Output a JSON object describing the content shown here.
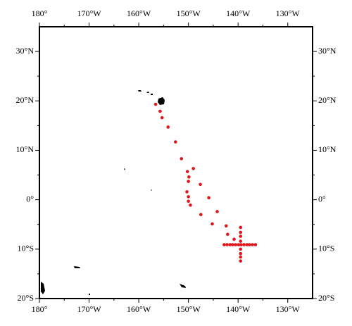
{
  "chart_data": {
    "type": "scatter",
    "x": [
      -156.6,
      -155.7,
      -155.3,
      -154.1,
      -152.6,
      -151.4,
      -150.2,
      -149.0,
      -149.9,
      -150.0,
      -147.6,
      -150.3,
      -150.0,
      -145.9,
      -150.0,
      -149.6,
      -147.5,
      -144.2,
      -145.2,
      -142.4,
      -139.5,
      -139.5,
      -142.1,
      -140.8,
      -139.5,
      -139.5,
      -142.8,
      -142.2,
      -141.6,
      -141.1,
      -140.5,
      -139.9,
      -139.4,
      -138.8,
      -138.2,
      -137.7,
      -137.1,
      -136.5,
      -139.5,
      -139.5,
      -139.5,
      -139.5
    ],
    "y": [
      19.3,
      17.9,
      16.6,
      14.7,
      11.7,
      8.3,
      5.7,
      6.3,
      4.6,
      3.7,
      3.1,
      1.6,
      0.6,
      0.4,
      -0.3,
      -1.1,
      -3.0,
      -2.4,
      -4.9,
      -5.3,
      -5.6,
      -6.6,
      -7.0,
      -8.0,
      -7.4,
      -8.4,
      -9.1,
      -9.1,
      -9.1,
      -9.1,
      -9.1,
      -9.1,
      -9.1,
      -9.1,
      -9.1,
      -9.1,
      -9.1,
      -9.1,
      -10.0,
      -10.9,
      -11.6,
      -12.4
    ],
    "color": "#e0161b",
    "xlim": [
      -180,
      -125
    ],
    "ylim": [
      -20,
      35
    ],
    "xticks": [
      {
        "value": -180,
        "label": "180°"
      },
      {
        "value": -170,
        "label": "170°W"
      },
      {
        "value": -160,
        "label": "160°W"
      },
      {
        "value": -150,
        "label": "150°W"
      },
      {
        "value": -140,
        "label": "140°W"
      },
      {
        "value": -130,
        "label": "130°W"
      }
    ],
    "yticks": [
      {
        "value": -20,
        "label": "20°S"
      },
      {
        "value": -10,
        "label": "10°S"
      },
      {
        "value": 0,
        "label": "0°"
      },
      {
        "value": 10,
        "label": "10°N"
      },
      {
        "value": 20,
        "label": "20°N"
      },
      {
        "value": 30,
        "label": "30°N"
      }
    ]
  }
}
